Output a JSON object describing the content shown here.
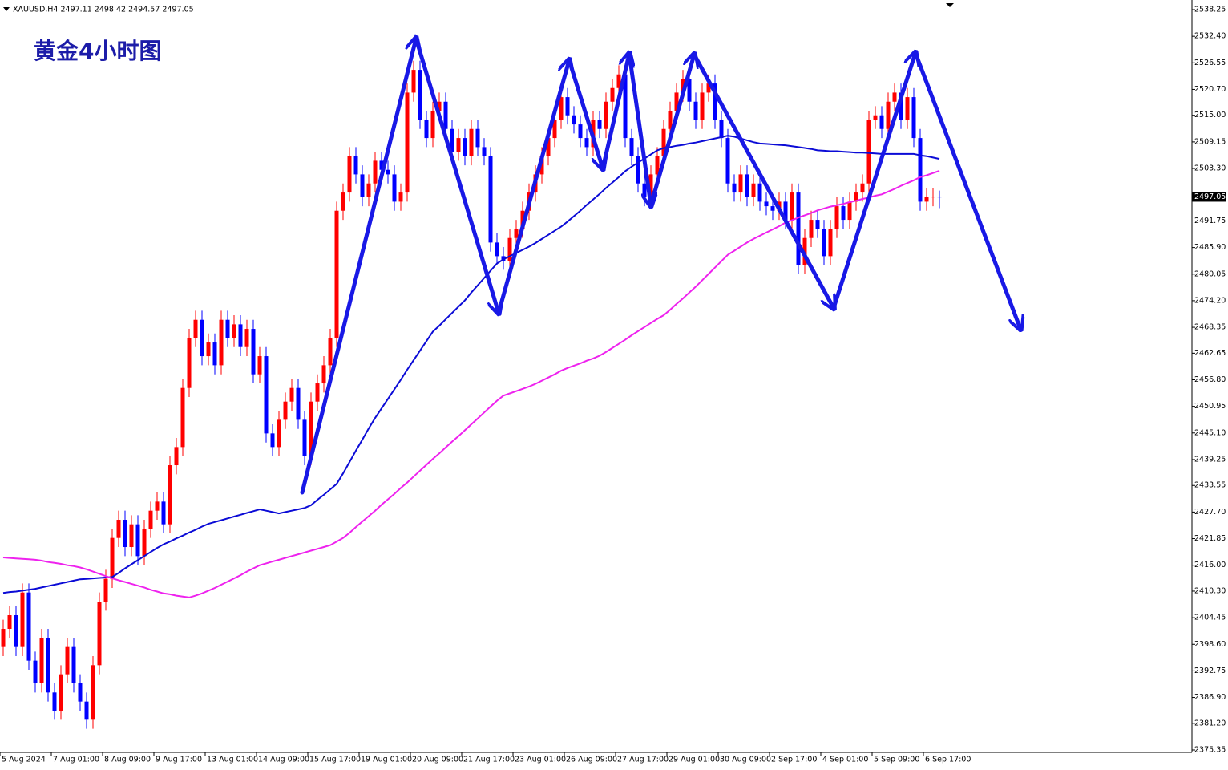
{
  "chart_data": {
    "type": "candlestick",
    "header": "XAUUSD,H4  2497.11 2498.42 2494.57 2497.05",
    "title": "黄金4小时图",
    "up_color": "#ff0000",
    "down_color": "#0000ff",
    "current_price": 2497.05,
    "ylim": [
      2374.82,
      2540.37
    ],
    "yticks": [
      2538.25,
      {
        "value": 2532.4,
        "label": "2532.40"
      },
      2526.55,
      {
        "value": 2520.7,
        "label": "2520.70"
      },
      {
        "value": 2515,
        "label": "2515.00"
      },
      2509.15,
      {
        "value": 2503.3,
        "label": "2503.30"
      },
      2491.75,
      {
        "value": 2485.9,
        "label": "2485.90"
      },
      2480.05,
      {
        "value": 2474.2,
        "label": "2474.20"
      },
      2468.35,
      2462.65,
      {
        "value": 2456.8,
        "label": "2456.80"
      },
      2450.95,
      {
        "value": 2445.1,
        "label": "2445.10"
      },
      2439.25,
      2433.55,
      {
        "value": 2427.7,
        "label": "2427.70"
      },
      2421.85,
      {
        "value": 2416,
        "label": "2416.00"
      },
      {
        "value": 2410.3,
        "label": "2410.30"
      },
      2404.45,
      {
        "value": 2398.6,
        "label": "2398.60"
      },
      2392.75,
      {
        "value": 2386.9,
        "label": "2386.90"
      },
      {
        "value": 2381.2,
        "label": "2381.20"
      },
      2375.35
    ],
    "categories": [
      "5 Aug 2024",
      null,
      null,
      null,
      null,
      null,
      null,
      null,
      "7 Aug 01:00",
      null,
      null,
      null,
      null,
      null,
      null,
      null,
      "8 Aug 09:00",
      null,
      null,
      null,
      null,
      null,
      null,
      null,
      "9 Aug 17:00",
      null,
      null,
      null,
      null,
      null,
      null,
      null,
      "13 Aug 01:00",
      null,
      null,
      null,
      null,
      null,
      null,
      null,
      "14 Aug 09:00",
      null,
      null,
      null,
      null,
      null,
      null,
      null,
      "15 Aug 17:00",
      null,
      null,
      null,
      null,
      null,
      null,
      null,
      "19 Aug 01:00",
      null,
      null,
      null,
      null,
      null,
      null,
      null,
      "20 Aug 09:00",
      null,
      null,
      null,
      null,
      null,
      null,
      null,
      "21 Aug 17:00",
      null,
      null,
      null,
      null,
      null,
      null,
      null,
      "23 Aug 01:00",
      null,
      null,
      null,
      null,
      null,
      null,
      null,
      "26 Aug 09:00",
      null,
      null,
      null,
      null,
      null,
      null,
      null,
      "27 Aug 17:00",
      null,
      null,
      null,
      null,
      null,
      null,
      null,
      "29 Aug 01:00",
      null,
      null,
      null,
      null,
      null,
      null,
      null,
      "30 Aug 09:00",
      null,
      null,
      null,
      null,
      null,
      null,
      null,
      "2 Sep 17:00",
      null,
      null,
      null,
      null,
      null,
      null,
      null,
      "4 Sep 01:00",
      null,
      null,
      null,
      null,
      null,
      null,
      null,
      "5 Sep 09:00",
      null,
      null,
      null,
      null,
      null,
      null,
      null,
      "6 Sep 17:00",
      null,
      null
    ],
    "open": [
      2398,
      2402,
      2405,
      2398,
      2410,
      2395,
      2390,
      2400,
      2388,
      2384,
      2392,
      2398,
      2390,
      2386,
      2382,
      2394,
      2408,
      2413,
      2422,
      2426,
      2420,
      2425,
      2418,
      2424,
      2428,
      2430,
      2425,
      2438,
      2442,
      2455,
      2466,
      2470,
      2462,
      2465,
      2460,
      2470,
      2466,
      2469,
      2464,
      2468,
      2458,
      2462,
      2445,
      2442,
      2448,
      2452,
      2455,
      2448,
      2440,
      2452,
      2456,
      2460,
      2466,
      2494,
      2498,
      2506,
      2502,
      2497,
      2500,
      2505,
      2503,
      2502,
      2496,
      2498,
      2520,
      2525,
      2514,
      2510,
      2516,
      2518,
      2512,
      2507,
      2510,
      2506,
      2512,
      2508,
      2506,
      2487,
      2484,
      2483,
      2488,
      2490,
      2494,
      2498,
      2502,
      2506,
      2510,
      2514,
      2519,
      2515,
      2513,
      2510,
      2508,
      2514,
      2512,
      2518,
      2521,
      2524,
      2510,
      2506,
      2500,
      2497,
      2502,
      2506,
      2512,
      2516,
      2520,
      2523,
      2518,
      2514,
      2520,
      2522,
      2514,
      2510,
      2500,
      2498,
      2502,
      2497,
      2500,
      2496,
      2495,
      2494,
      2496,
      2492,
      2498,
      2482,
      2488,
      2492,
      2490,
      2484,
      2490,
      2495,
      2492,
      2496,
      2498,
      2500,
      2514,
      2515,
      2512,
      2518,
      2520,
      2514,
      2519,
      2510,
      2496,
      2497,
      2497.11
    ],
    "high": [
      2404,
      2407,
      2407,
      2412,
      2412,
      2397,
      2402,
      2402,
      2390,
      2394,
      2400,
      2400,
      2392,
      2388,
      2396,
      2410,
      2415,
      2424,
      2428,
      2428,
      2427,
      2427,
      2426,
      2430,
      2432,
      2432,
      2440,
      2444,
      2457,
      2468,
      2472,
      2472,
      2467,
      2467,
      2472,
      2472,
      2471,
      2471,
      2470,
      2470,
      2464,
      2464,
      2447,
      2450,
      2454,
      2457,
      2457,
      2450,
      2454,
      2458,
      2462,
      2468,
      2496,
      2500,
      2508,
      2508,
      2504,
      2502,
      2507,
      2507,
      2505,
      2504,
      2500,
      2522,
      2527,
      2527,
      2516,
      2518,
      2520,
      2520,
      2514,
      2512,
      2512,
      2514,
      2514,
      2510,
      2508,
      2489,
      2486,
      2490,
      2492,
      2496,
      2500,
      2504,
      2508,
      2512,
      2516,
      2521,
      2521,
      2517,
      2515,
      2512,
      2516,
      2516,
      2520,
      2523,
      2526,
      2526,
      2512,
      2508,
      2502,
      2504,
      2508,
      2514,
      2518,
      2522,
      2525,
      2525,
      2520,
      2522,
      2524,
      2524,
      2516,
      2512,
      2502,
      2504,
      2504,
      2502,
      2502,
      2498,
      2497,
      2498,
      2498,
      2500,
      2500,
      2490,
      2494,
      2494,
      2492,
      2492,
      2497,
      2497,
      2498,
      2500,
      2502,
      2516,
      2517,
      2517,
      2520,
      2522,
      2522,
      2521,
      2521,
      2512,
      2499,
      2499,
      2498.42
    ],
    "low": [
      2396,
      2400,
      2396,
      2396,
      2393,
      2388,
      2388,
      2386,
      2382,
      2382,
      2390,
      2388,
      2384,
      2380,
      2380,
      2392,
      2406,
      2411,
      2420,
      2418,
      2418,
      2416,
      2416,
      2422,
      2426,
      2423,
      2423,
      2436,
      2440,
      2453,
      2464,
      2460,
      2460,
      2458,
      2458,
      2464,
      2464,
      2462,
      2462,
      2456,
      2456,
      2443,
      2440,
      2440,
      2446,
      2450,
      2446,
      2438,
      2438,
      2450,
      2454,
      2458,
      2464,
      2492,
      2496,
      2500,
      2495,
      2495,
      2498,
      2501,
      2500,
      2494,
      2494,
      2496,
      2518,
      2512,
      2508,
      2508,
      2514,
      2510,
      2505,
      2505,
      2504,
      2504,
      2506,
      2504,
      2485,
      2482,
      2481,
      2481,
      2486,
      2488,
      2492,
      2496,
      2500,
      2504,
      2508,
      2512,
      2513,
      2511,
      2508,
      2506,
      2506,
      2510,
      2510,
      2516,
      2519,
      2508,
      2504,
      2498,
      2495,
      2495,
      2500,
      2504,
      2510,
      2514,
      2518,
      2516,
      2512,
      2512,
      2518,
      2512,
      2508,
      2498,
      2496,
      2496,
      2495,
      2495,
      2494,
      2493,
      2492,
      2492,
      2490,
      2490,
      2480,
      2480,
      2486,
      2488,
      2482,
      2482,
      2488,
      2490,
      2490,
      2494,
      2496,
      2498,
      2512,
      2510,
      2510,
      2516,
      2512,
      2512,
      2508,
      2494,
      2494,
      2495,
      2494.57
    ],
    "close": [
      2402,
      2405,
      2398,
      2410,
      2395,
      2390,
      2400,
      2388,
      2384,
      2392,
      2398,
      2390,
      2386,
      2382,
      2394,
      2408,
      2413,
      2422,
      2426,
      2420,
      2425,
      2418,
      2424,
      2428,
      2430,
      2425,
      2438,
      2442,
      2455,
      2466,
      2470,
      2462,
      2465,
      2460,
      2470,
      2466,
      2469,
      2464,
      2468,
      2458,
      2462,
      2445,
      2442,
      2448,
      2452,
      2455,
      2448,
      2440,
      2452,
      2456,
      2460,
      2466,
      2494,
      2498,
      2506,
      2502,
      2497,
      2500,
      2505,
      2503,
      2502,
      2496,
      2498,
      2520,
      2525,
      2514,
      2510,
      2516,
      2518,
      2512,
      2507,
      2510,
      2506,
      2512,
      2508,
      2506,
      2487,
      2484,
      2483,
      2488,
      2490,
      2494,
      2498,
      2502,
      2506,
      2510,
      2514,
      2519,
      2515,
      2513,
      2510,
      2508,
      2514,
      2512,
      2518,
      2521,
      2524,
      2510,
      2506,
      2500,
      2497,
      2502,
      2506,
      2512,
      2516,
      2520,
      2523,
      2518,
      2514,
      2520,
      2522,
      2514,
      2510,
      2500,
      2498,
      2502,
      2497,
      2500,
      2496,
      2495,
      2494,
      2496,
      2492,
      2498,
      2482,
      2488,
      2492,
      2490,
      2484,
      2490,
      2495,
      2492,
      2496,
      2498,
      2500,
      2514,
      2515,
      2512,
      2518,
      2520,
      2514,
      2519,
      2510,
      2496,
      2497,
      2497.11,
      2497.05
    ],
    "series": [
      {
        "color": "#0b0bd6",
        "values": [
          2409.9,
          2410.1,
          2410.2,
          2410.4,
          2410.6,
          2410.8,
          2411.1,
          2411.4,
          2411.7,
          2412.0,
          2412.3,
          2412.6,
          2412.9,
          2413.0,
          2413.1,
          2413.2,
          2413.3,
          2413.4,
          2414.3,
          2415.3,
          2416.2,
          2417.1,
          2418.0,
          2418.9,
          2419.8,
          2420.6,
          2421.2,
          2421.9,
          2422.5,
          2423.2,
          2423.8,
          2424.5,
          2425.1,
          2425.5,
          2425.9,
          2426.3,
          2426.7,
          2427.1,
          2427.5,
          2427.9,
          2428.3,
          2428.0,
          2427.7,
          2427.4,
          2427.7,
          2428.0,
          2428.3,
          2428.6,
          2429.2,
          2430.4,
          2431.5,
          2432.7,
          2433.9,
          2436.2,
          2438.7,
          2441.2,
          2443.6,
          2446.1,
          2448.4,
          2450.5,
          2452.6,
          2454.7,
          2456.8,
          2459.0,
          2461.1,
          2463.2,
          2465.3,
          2467.4,
          2468.7,
          2470.1,
          2471.5,
          2472.9,
          2474.3,
          2476.0,
          2477.6,
          2479.2,
          2480.8,
          2482.4,
          2483.3,
          2484.0,
          2484.7,
          2485.4,
          2486.1,
          2486.9,
          2487.8,
          2488.7,
          2489.6,
          2490.5,
          2491.6,
          2492.8,
          2494.0,
          2495.3,
          2496.5,
          2497.7,
          2499.0,
          2500.2,
          2501.4,
          2502.7,
          2503.7,
          2504.6,
          2505.5,
          2506.4,
          2507.3,
          2507.8,
          2508.0,
          2508.3,
          2508.5,
          2508.8,
          2509.0,
          2509.3,
          2509.6,
          2509.9,
          2510.2,
          2510.5,
          2510.3,
          2509.9,
          2509.5,
          2509.1,
          2508.8,
          2508.7,
          2508.6,
          2508.5,
          2508.4,
          2508.2,
          2508.0,
          2507.8,
          2507.6,
          2507.3,
          2507.2,
          2507.1,
          2507.1,
          2507.0,
          2506.9,
          2506.8,
          2506.8,
          2506.7,
          2506.6,
          2506.5,
          2506.5,
          2506.5,
          2506.5,
          2506.5,
          2506.5,
          2506.2,
          2506.0,
          2505.7,
          2505.4
        ]
      },
      {
        "color": "#ee22ee",
        "values": [
          2417.7,
          2417.6,
          2417.5,
          2417.4,
          2417.3,
          2417.2,
          2417.0,
          2416.7,
          2416.5,
          2416.3,
          2416.0,
          2415.8,
          2415.5,
          2415.1,
          2414.6,
          2414.1,
          2413.6,
          2413.1,
          2412.7,
          2412.3,
          2411.9,
          2411.5,
          2411.1,
          2410.6,
          2410.2,
          2409.8,
          2409.6,
          2409.3,
          2409.1,
          2408.9,
          2409.3,
          2409.8,
          2410.4,
          2411.0,
          2411.7,
          2412.4,
          2413.1,
          2413.8,
          2414.6,
          2415.3,
          2416.0,
          2416.4,
          2416.8,
          2417.2,
          2417.6,
          2418.0,
          2418.4,
          2418.8,
          2419.2,
          2419.6,
          2420.0,
          2420.4,
          2421.2,
          2422.0,
          2423.1,
          2424.4,
          2425.6,
          2426.8,
          2428.0,
          2429.3,
          2430.5,
          2431.7,
          2433.0,
          2434.2,
          2435.5,
          2436.8,
          2438.1,
          2439.4,
          2440.6,
          2441.9,
          2443.2,
          2444.4,
          2445.7,
          2447.0,
          2448.3,
          2449.6,
          2450.9,
          2452.2,
          2453.3,
          2453.8,
          2454.3,
          2454.8,
          2455.3,
          2455.9,
          2456.6,
          2457.3,
          2458.0,
          2458.8,
          2459.4,
          2459.9,
          2460.4,
          2461.0,
          2461.5,
          2462.1,
          2462.9,
          2463.8,
          2464.7,
          2465.6,
          2466.6,
          2467.5,
          2468.4,
          2469.3,
          2470.2,
          2471.0,
          2472.2,
          2473.5,
          2474.7,
          2476.0,
          2477.3,
          2478.7,
          2480.1,
          2481.5,
          2482.9,
          2484.3,
          2485.2,
          2486.1,
          2487.0,
          2487.8,
          2488.5,
          2489.2,
          2489.9,
          2490.6,
          2491.4,
          2491.9,
          2492.5,
          2493.0,
          2493.5,
          2494.1,
          2494.5,
          2494.9,
          2495.2,
          2495.5,
          2495.9,
          2496.2,
          2496.6,
          2496.9,
          2497.3,
          2497.6,
          2498.2,
          2498.8,
          2499.5,
          2500.1,
          2500.7,
          2501.4,
          2501.8,
          2502.3,
          2502.8
        ]
      }
    ]
  }
}
